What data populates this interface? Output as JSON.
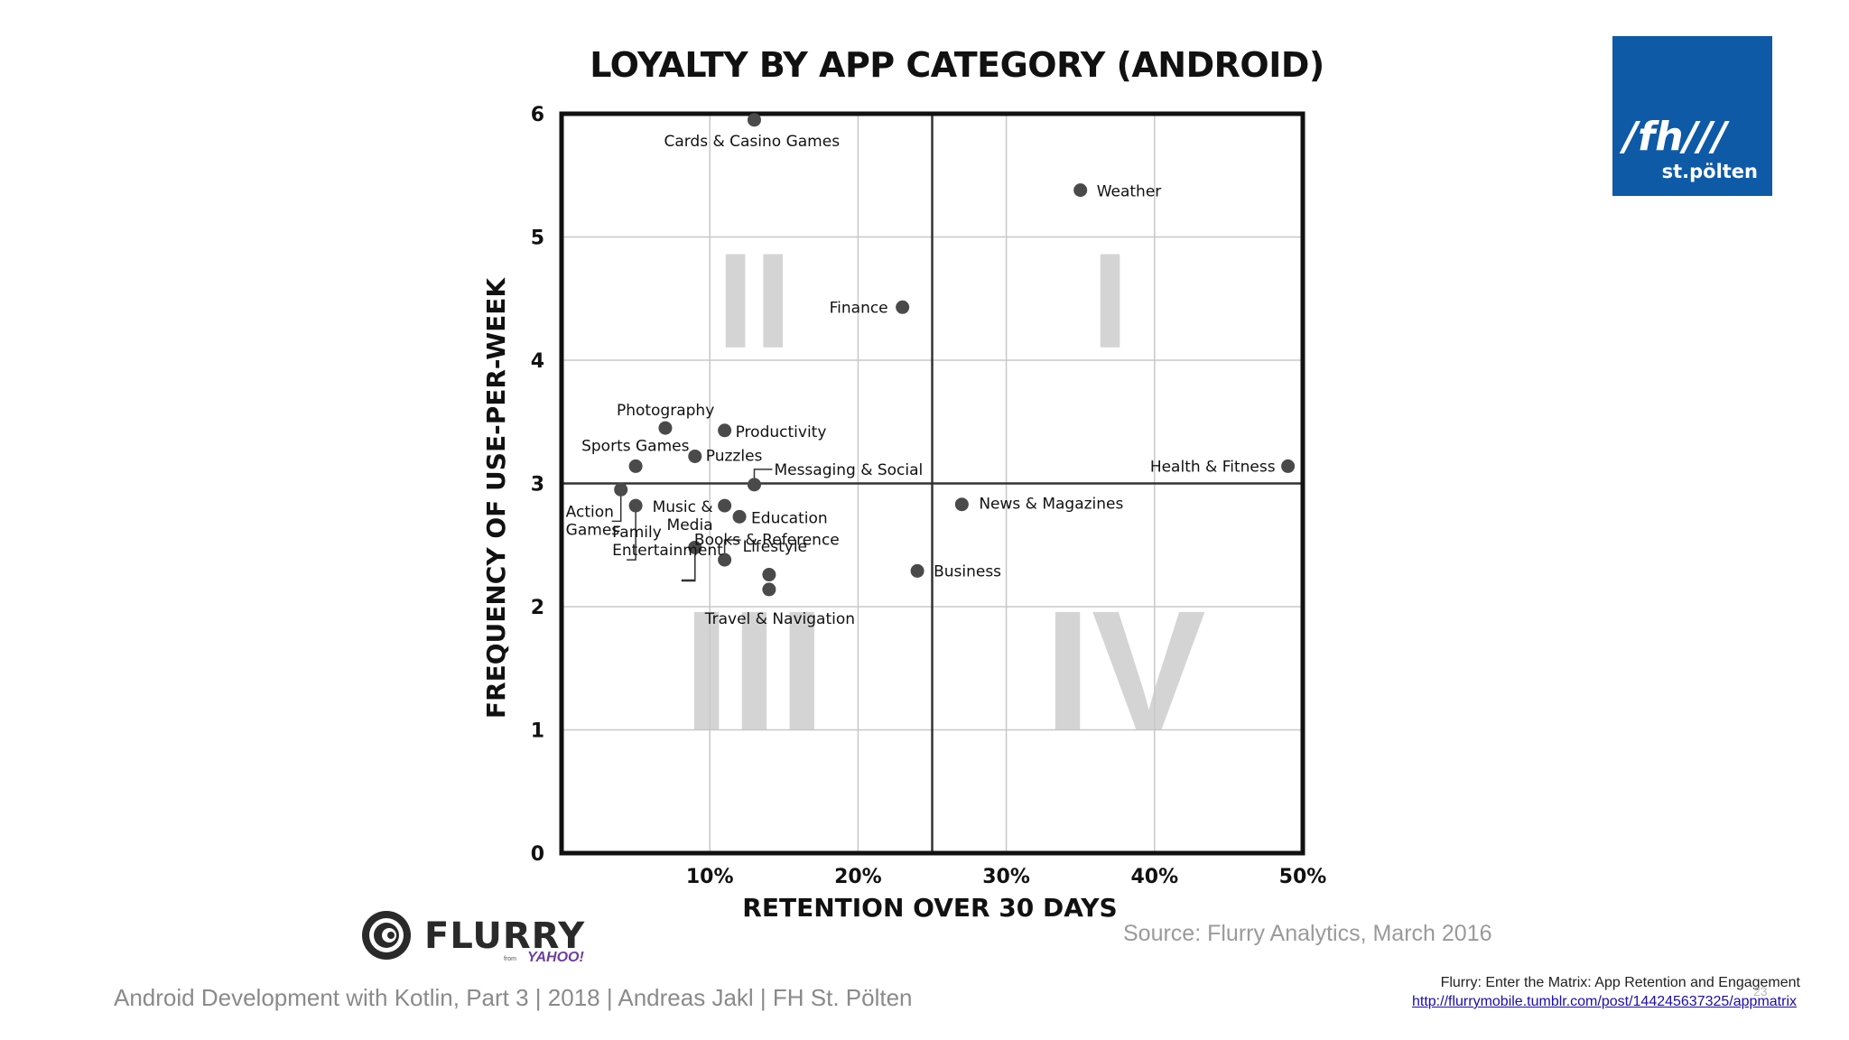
{
  "chart_data": {
    "type": "scatter",
    "title": "LOYALTY BY APP CATEGORY (ANDROID)",
    "xlabel": "RETENTION OVER 30 DAYS",
    "ylabel": "FREQUENCY OF USE-PER-WEEK",
    "xlim": [
      0,
      50
    ],
    "ylim": [
      0,
      6
    ],
    "x_ticks": [
      {
        "value": 10,
        "label": "10%"
      },
      {
        "value": 20,
        "label": "20%"
      },
      {
        "value": 30,
        "label": "30%"
      },
      {
        "value": 40,
        "label": "40%"
      },
      {
        "value": 50,
        "label": "50%"
      }
    ],
    "y_ticks": [
      {
        "value": 0,
        "label": "0"
      },
      {
        "value": 1,
        "label": "1"
      },
      {
        "value": 2,
        "label": "2"
      },
      {
        "value": 3,
        "label": "3"
      },
      {
        "value": 4,
        "label": "4"
      },
      {
        "value": 5,
        "label": "5"
      },
      {
        "value": 6,
        "label": "6"
      }
    ],
    "grid": true,
    "divider_x": 25,
    "divider_y": 3,
    "quadrants": [
      {
        "label": "I",
        "x": 37,
        "y": 4.5
      },
      {
        "label": "II",
        "x": 13,
        "y": 4.5
      },
      {
        "label": "III",
        "x": 13,
        "y": 1.5
      },
      {
        "label": "IV",
        "x": 38,
        "y": 1.5
      }
    ],
    "points": [
      {
        "label": "Cards & Casino Games",
        "x": 13,
        "y": 5.95
      },
      {
        "label": "Weather",
        "x": 35,
        "y": 5.38
      },
      {
        "label": "Finance",
        "x": 23,
        "y": 4.43
      },
      {
        "label": "Photography",
        "x": 7,
        "y": 3.45
      },
      {
        "label": "Productivity",
        "x": 11,
        "y": 3.43
      },
      {
        "label": "Puzzles",
        "x": 9,
        "y": 3.22
      },
      {
        "label": "Sports Games",
        "x": 5,
        "y": 3.14
      },
      {
        "label": "Messaging & Social",
        "x": 13,
        "y": 2.99
      },
      {
        "label": "Health & Fitness",
        "x": 49,
        "y": 3.14
      },
      {
        "label": "Action Games",
        "x": 4,
        "y": 2.95
      },
      {
        "label": "Family Entertainment",
        "x": 5,
        "y": 2.82
      },
      {
        "label": "Music & Media",
        "x": 11,
        "y": 2.82
      },
      {
        "label": "Education",
        "x": 12,
        "y": 2.73
      },
      {
        "label": "News & Magazines",
        "x": 27,
        "y": 2.83
      },
      {
        "label": "Books & Reference",
        "x": 9,
        "y": 2.48
      },
      {
        "label": "Lifestyle",
        "x": 11,
        "y": 2.38
      },
      {
        "label": "Business",
        "x": 24,
        "y": 2.29
      },
      {
        "label": "Travel & Navigation",
        "x": 14,
        "y": 2.26
      },
      {
        "label": "Unlabeled",
        "x": 14,
        "y": 2.14
      }
    ]
  },
  "source": "Source: Flurry Analytics, March 2016",
  "logos": {
    "flurry": "FLURRY",
    "flurry_from": "from",
    "flurry_yahoo": "YAHOO!",
    "fh": "/fh///",
    "fh_sub": "st.pölten"
  },
  "footer": "Android Development with Kotlin, Part 3 | 2018 | Andreas Jakl | FH St. Pölten",
  "reference": {
    "title": "Flurry: Enter the Matrix: App Retention and Engagement",
    "url": "http://flurrymobile.tumblr.com/post/144245637325/appmatrix"
  },
  "page_number": "23",
  "colors": {
    "point": "#4a4a4a",
    "frame": "#111111",
    "grid": "#c8c8c8",
    "quadrant": "#d4d4d4",
    "logo_bg": "#0e5aa7"
  }
}
